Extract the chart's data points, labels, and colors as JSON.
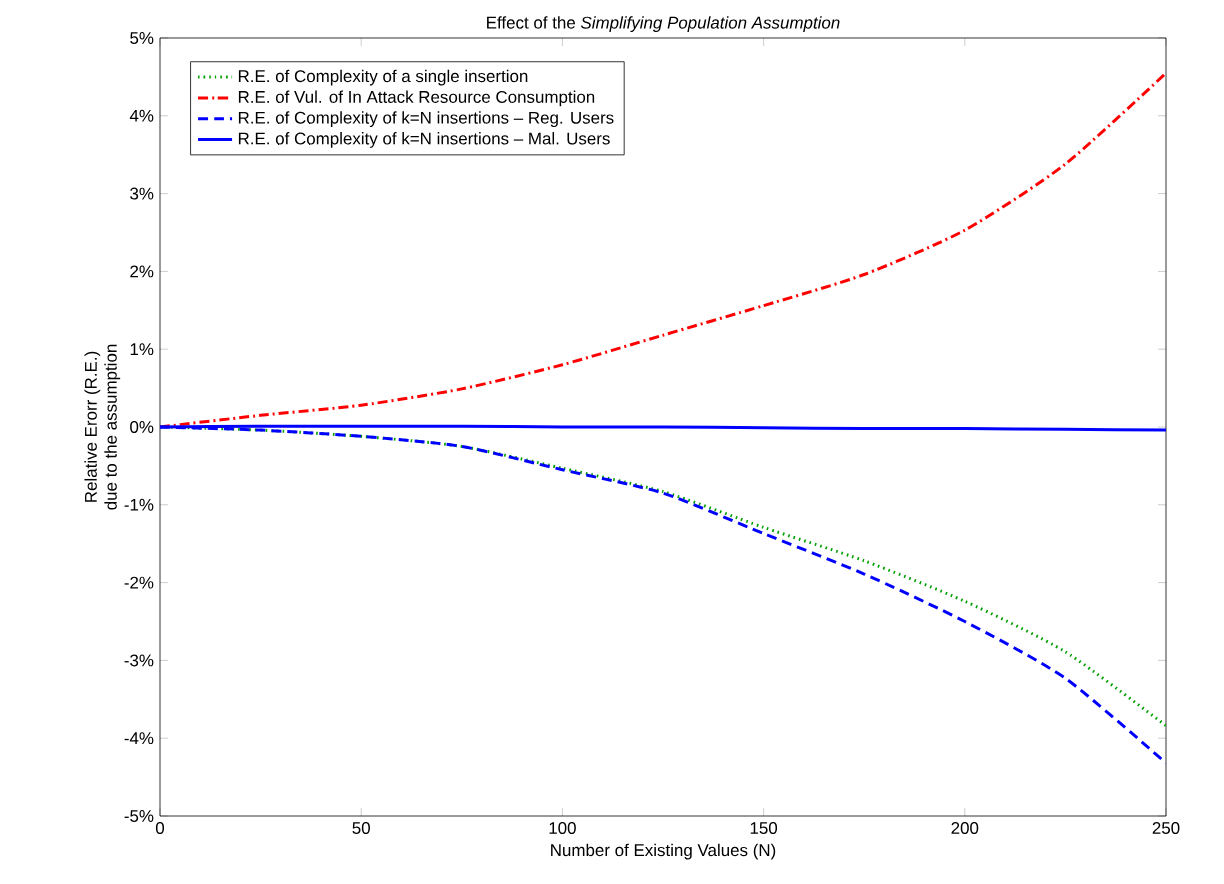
{
  "chart_data": {
    "type": "line",
    "title": "Effect of the *Simplifying Population Assumption*",
    "xlabel": "Number of Existing Values (N)",
    "ylabel": "Relative Erorr  (R.E.) due to the assumption",
    "x": [
      0,
      25,
      50,
      75,
      100,
      125,
      150,
      175,
      200,
      225,
      250
    ],
    "series": [
      {
        "name": "R.E. of Complexity of a single insertion",
        "color": "#00a000",
        "line_style": "dotted",
        "values": [
          0,
          -0.04,
          -0.12,
          -0.25,
          -0.53,
          -0.83,
          -1.29,
          -1.72,
          -2.24,
          -2.89,
          -3.84
        ]
      },
      {
        "name": "R.E. of Vul. of In Attack Resource Consumption",
        "color": "#ff0000",
        "line_style": "dashdot",
        "values": [
          0,
          0.15,
          0.28,
          0.49,
          0.8,
          1.18,
          1.56,
          1.96,
          2.53,
          3.38,
          4.55
        ]
      },
      {
        "name": "R.E. of Complexity of k=N insertions – Reg. Users",
        "color": "#0000ff",
        "line_style": "dashed",
        "values": [
          0,
          -0.04,
          -0.12,
          -0.25,
          -0.55,
          -0.85,
          -1.37,
          -1.89,
          -2.5,
          -3.23,
          -4.32
        ]
      },
      {
        "name": "R.E. of Complexity of k=N insertions – Mal. Users",
        "color": "#0000ff",
        "line_style": "solid",
        "values": [
          0,
          0.01,
          0.01,
          0.01,
          0,
          0,
          -0.01,
          -0.02,
          -0.02,
          -0.03,
          -0.04
        ]
      }
    ],
    "xlim": [
      0,
      250
    ],
    "xticks": [
      0,
      50,
      100,
      150,
      200,
      250
    ],
    "ylim": [
      -5,
      5
    ],
    "yticks": [
      {
        "value": -5,
        "label": "-5%"
      },
      {
        "value": -4,
        "label": "-4%"
      },
      {
        "value": -3,
        "label": "-3%"
      },
      {
        "value": -2,
        "label": "-2%"
      },
      {
        "value": -1,
        "label": "-1%"
      },
      {
        "value": 0,
        "label": "0%"
      },
      {
        "value": 1,
        "label": "1%"
      },
      {
        "value": 2,
        "label": "2%"
      },
      {
        "value": 3,
        "label": "3%"
      },
      {
        "value": 4,
        "label": "4%"
      },
      {
        "value": 5,
        "label": "5%"
      }
    ],
    "grid": false,
    "legend": "top left",
    "marker": "none"
  }
}
